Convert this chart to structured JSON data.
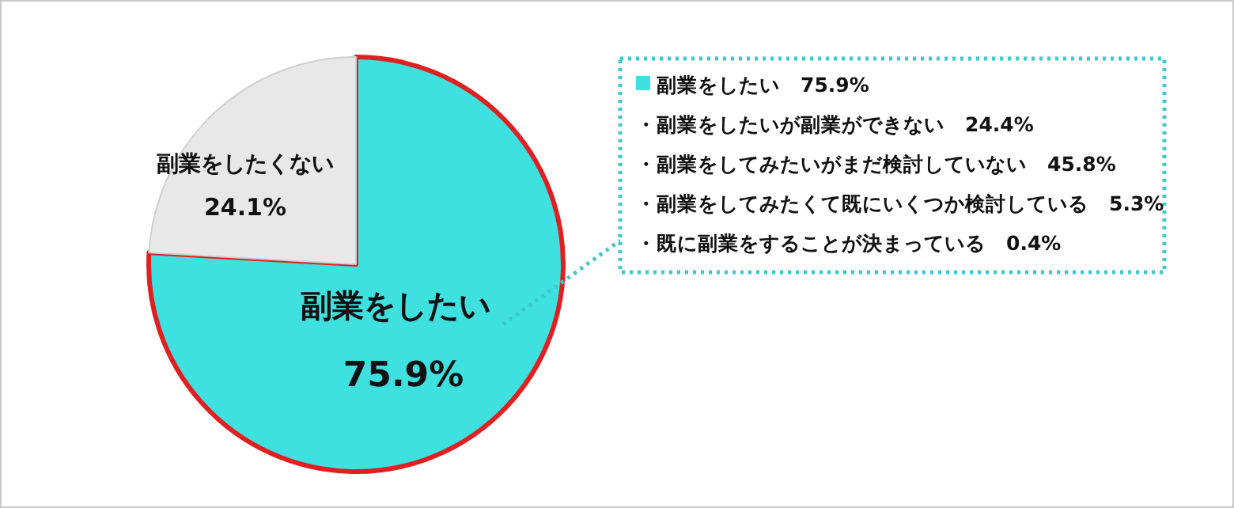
{
  "chart_data": {
    "type": "pie",
    "categories": [
      "副業をしたい",
      "副業をしたくない"
    ],
    "values": [
      75.9,
      24.1
    ],
    "colors": [
      "#3ee0e0",
      "#e8e8e8"
    ],
    "value_labels": [
      "75.9%",
      "24.1%"
    ],
    "annotations": [
      "副業をしたい　75.9%",
      "・副業をしたいが副業ができない　24.4%",
      "・副業をしてみたいがまだ検討していない　45.8%",
      "・副業をしてみたくて既にいくつか検討している　5.3%",
      "・既に副業をすることが決まっている　0.4%"
    ]
  }
}
